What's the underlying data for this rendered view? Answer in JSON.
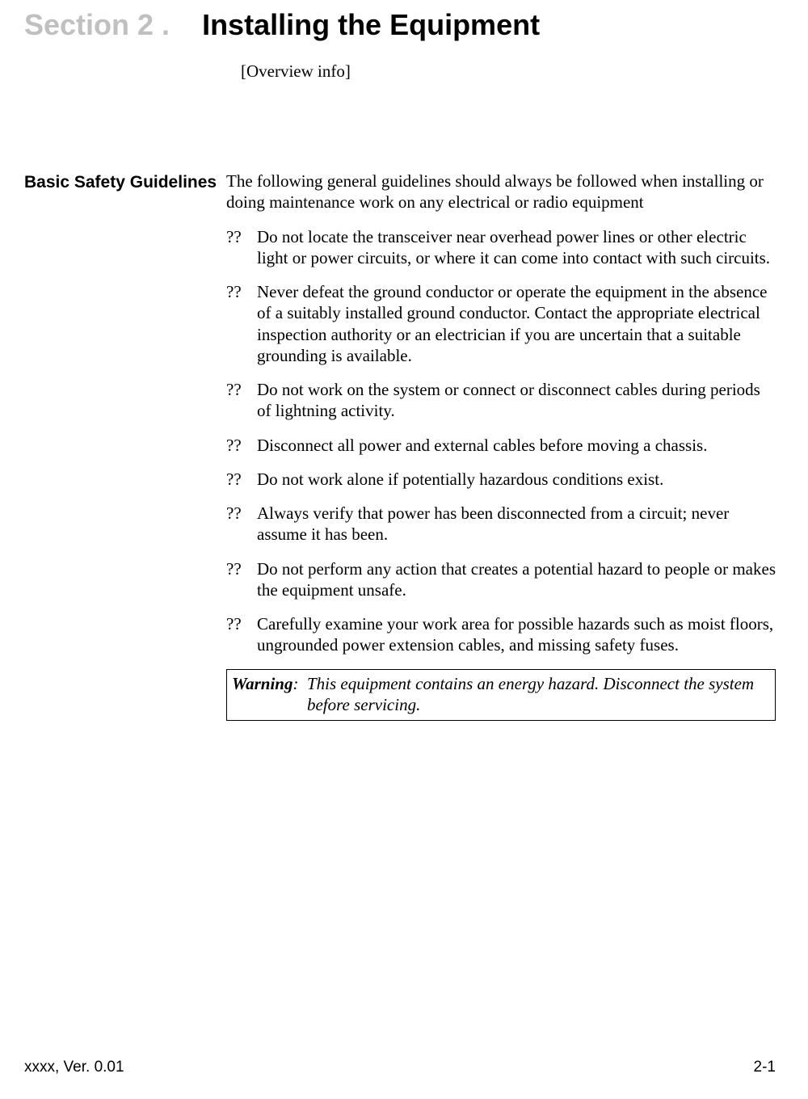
{
  "header": {
    "section_number": "Section 2 .",
    "section_title": "Installing the Equipment",
    "overview": "[Overview info]"
  },
  "sidebar": {
    "heading": "Basic Safety Guidelines"
  },
  "body": {
    "intro": "The following general guidelines should always be followed when installing or doing maintenance work on any electrical or radio equipment",
    "bullets": [
      "Do not locate the transceiver near overhead power lines or other electric light or power circuits, or where it can come into contact with such circuits.",
      "Never defeat the ground conductor or operate the equipment in the absence of a suitably installed ground conductor. Contact the appropriate electrical inspection authority or an electrician if you are uncertain that a suitable grounding is available.",
      "Do not work on the system or connect or disconnect cables during periods of lightning activity.",
      "Disconnect all power and external cables before moving a chassis.",
      "Do not work alone if potentially hazardous conditions exist.",
      "Always verify that power has been disconnected from a circuit; never assume it has been.",
      "Do not perform any action that creates a potential hazard to people or makes the equipment unsafe.",
      "Carefully examine your work area for possible hazards such as moist floors, ungrounded power extension cables, and missing safety fuses."
    ],
    "bullet_marker": "??"
  },
  "warning": {
    "label": "Warning",
    "separator": ":  ",
    "text": "This equipment contains an energy hazard. Disconnect the system before servicing."
  },
  "footer": {
    "left": "xxxx, Ver. 0.01",
    "right": "2-1"
  },
  "colors": {
    "section_number_gray": "#c0c0c0",
    "text": "#000000",
    "background": "#ffffff"
  }
}
